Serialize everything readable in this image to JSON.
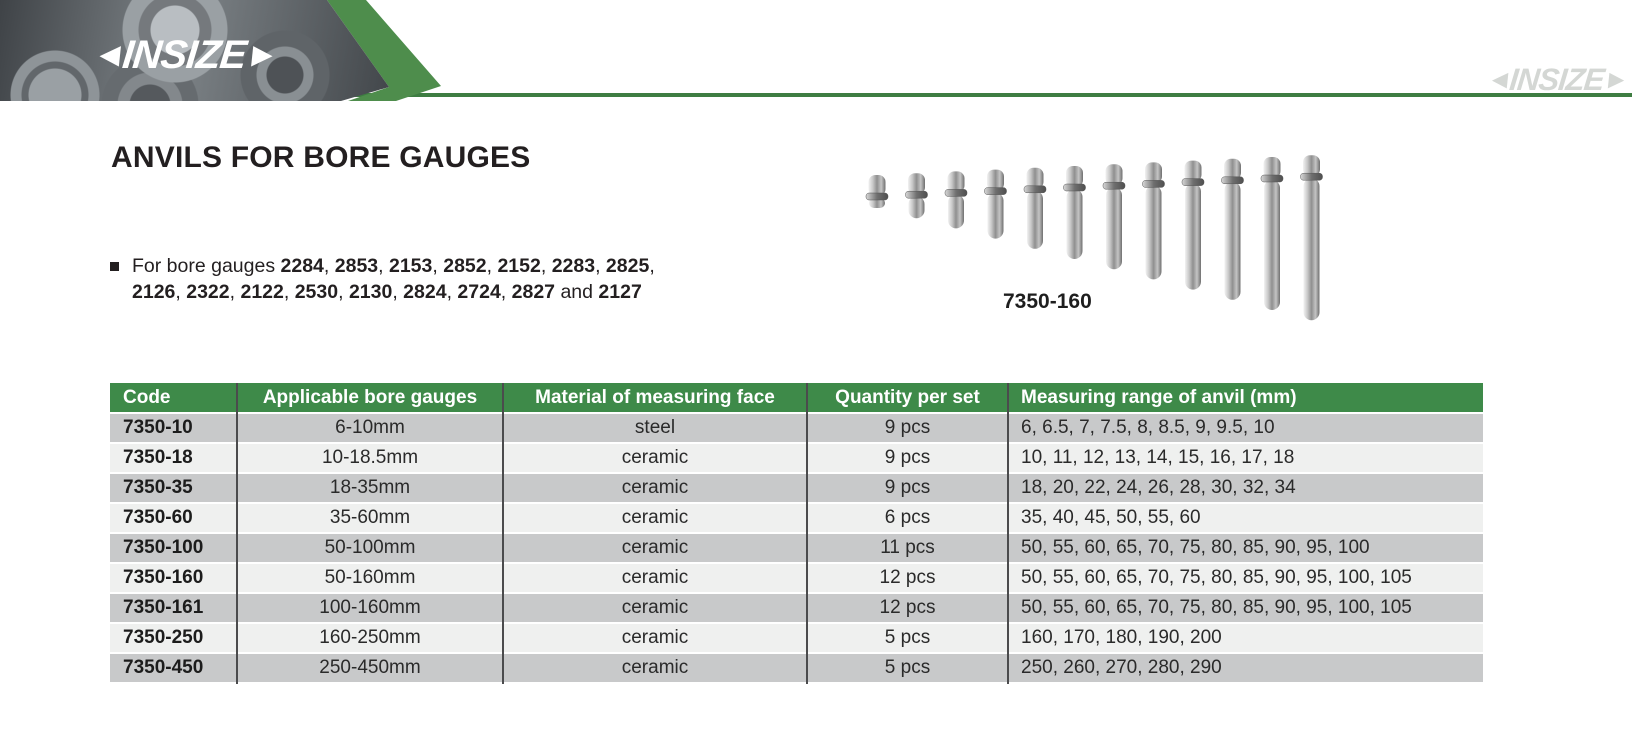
{
  "colors": {
    "brand_green": "#4e8d4c",
    "rule_green": "#3e7d42",
    "table_header_green": "#3e8a49",
    "row_dark": "#c8c9ca",
    "row_light": "#eff0ef"
  },
  "header": {
    "logo_text": "INSIZE",
    "logo_left_arrow": "◄",
    "logo_right_arrow": "►",
    "watermark_text": "INSIZE"
  },
  "page": {
    "title": "ANVILS FOR BORE GAUGES"
  },
  "intro": {
    "bullet": "■",
    "lines": [
      [
        {
          "t": "For bore gauges ",
          "b": 0
        },
        {
          "t": "2284",
          "b": 1
        },
        {
          "t": ", ",
          "b": 0
        },
        {
          "t": "2853",
          "b": 1
        },
        {
          "t": ", ",
          "b": 0
        },
        {
          "t": "2153",
          "b": 1
        },
        {
          "t": ", ",
          "b": 0
        },
        {
          "t": "2852",
          "b": 1
        },
        {
          "t": ", ",
          "b": 0
        },
        {
          "t": "2152",
          "b": 1
        },
        {
          "t": ", ",
          "b": 0
        },
        {
          "t": "2283",
          "b": 1
        },
        {
          "t": ", ",
          "b": 0
        },
        {
          "t": "2825",
          "b": 1
        },
        {
          "t": ",",
          "b": 0
        }
      ],
      [
        {
          "t": "2126",
          "b": 1
        },
        {
          "t": ", ",
          "b": 0
        },
        {
          "t": "2322",
          "b": 1
        },
        {
          "t": ", ",
          "b": 0
        },
        {
          "t": "2122",
          "b": 1
        },
        {
          "t": ", ",
          "b": 0
        },
        {
          "t": "2530",
          "b": 1
        },
        {
          "t": ", ",
          "b": 0
        },
        {
          "t": "2130",
          "b": 1
        },
        {
          "t": ", ",
          "b": 0
        },
        {
          "t": "2824",
          "b": 1
        },
        {
          "t": ", ",
          "b": 0
        },
        {
          "t": "2724",
          "b": 1
        },
        {
          "t": ", ",
          "b": 0
        },
        {
          "t": "2827",
          "b": 1
        },
        {
          "t": " and ",
          "b": 0
        },
        {
          "t": "2127",
          "b": 1
        }
      ]
    ]
  },
  "figure": {
    "label": "7350-160",
    "anvil_count": 12
  },
  "table": {
    "headers": [
      "Code",
      "Applicable bore gauges",
      "Material of measuring face",
      "Quantity per set",
      "Measuring range of anvil (mm)"
    ],
    "align": [
      "left",
      "center",
      "center",
      "center",
      "left"
    ],
    "rows": [
      {
        "code": "7350-10",
        "gauges": "6-10mm",
        "material": "steel",
        "qty": "9 pcs",
        "range": "6, 6.5, 7, 7.5, 8, 8.5, 9, 9.5, 10"
      },
      {
        "code": "7350-18",
        "gauges": "10-18.5mm",
        "material": "ceramic",
        "qty": "9 pcs",
        "range": "10, 11, 12, 13, 14, 15, 16, 17, 18"
      },
      {
        "code": "7350-35",
        "gauges": "18-35mm",
        "material": "ceramic",
        "qty": "9 pcs",
        "range": "18, 20, 22, 24, 26, 28, 30, 32, 34"
      },
      {
        "code": "7350-60",
        "gauges": "35-60mm",
        "material": "ceramic",
        "qty": "6 pcs",
        "range": "35, 40, 45, 50, 55, 60"
      },
      {
        "code": "7350-100",
        "gauges": "50-100mm",
        "material": "ceramic",
        "qty": "11 pcs",
        "range": "50, 55, 60, 65, 70, 75, 80, 85, 90, 95, 100"
      },
      {
        "code": "7350-160",
        "gauges": "50-160mm",
        "material": "ceramic",
        "qty": "12 pcs",
        "range": "50, 55, 60, 65, 70, 75, 80, 85, 90, 95, 100, 105"
      },
      {
        "code": "7350-161",
        "gauges": "100-160mm",
        "material": "ceramic",
        "qty": "12 pcs",
        "range": "50, 55, 60, 65, 70, 75, 80, 85, 90, 95, 100, 105"
      },
      {
        "code": "7350-250",
        "gauges": "160-250mm",
        "material": "ceramic",
        "qty": "5 pcs",
        "range": "160, 170, 180, 190, 200"
      },
      {
        "code": "7350-450",
        "gauges": "250-450mm",
        "material": "ceramic",
        "qty": "5 pcs",
        "range": "250, 260, 270, 280, 290"
      }
    ]
  }
}
